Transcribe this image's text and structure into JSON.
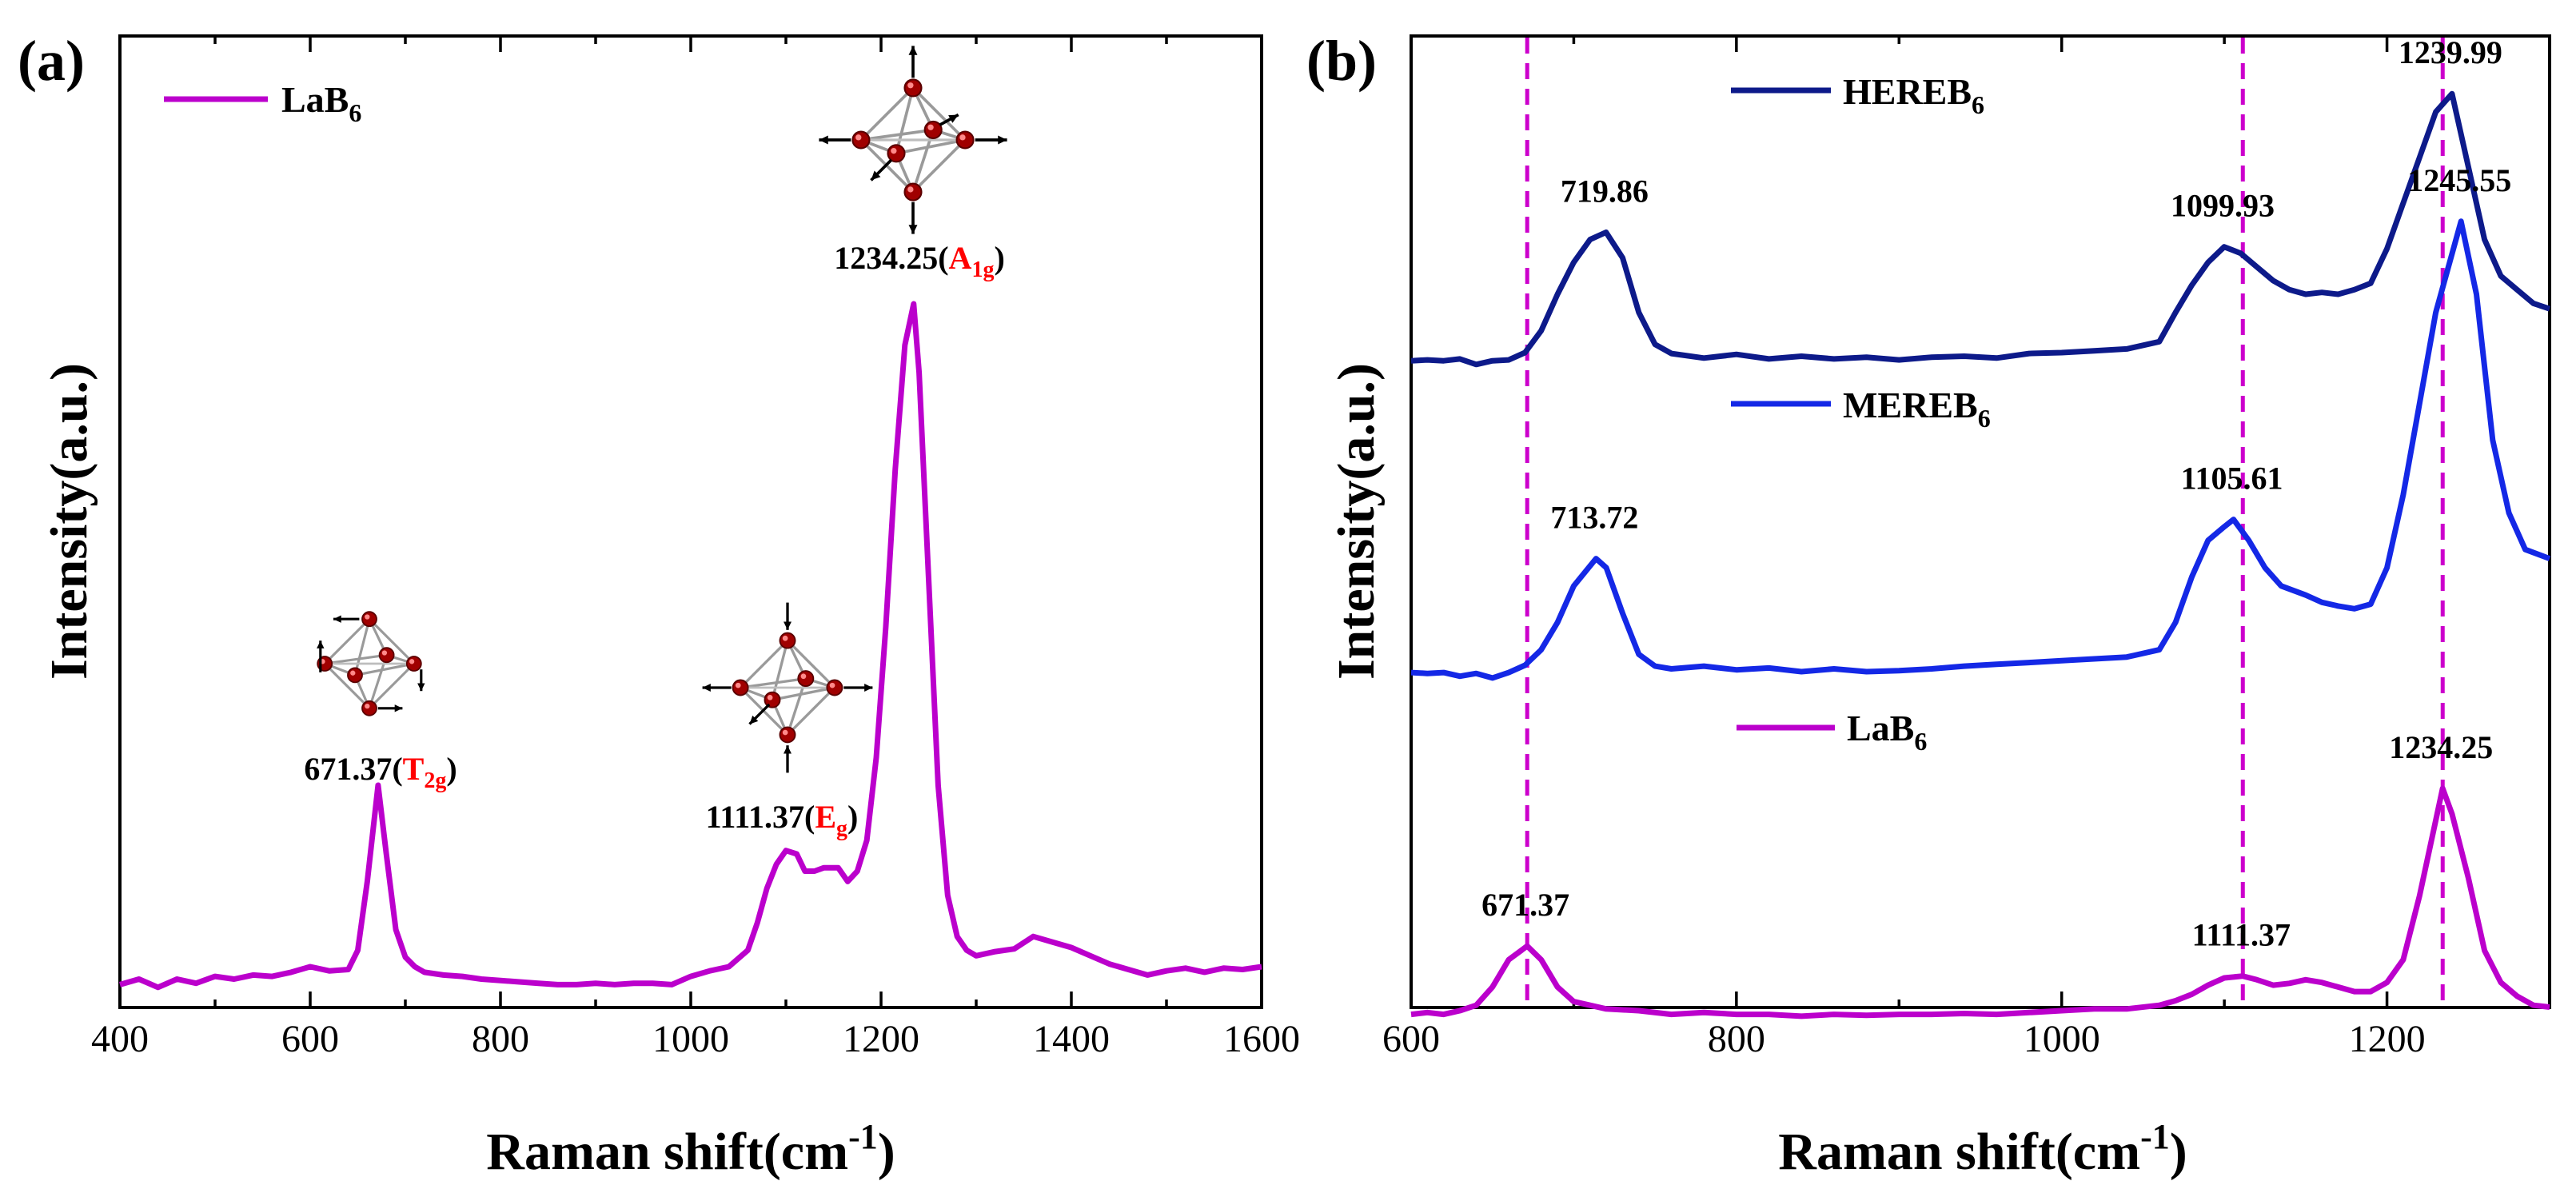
{
  "chart_data": [
    {
      "panel": "(a)",
      "type": "line",
      "xlabel": "Raman shift(cm-1)",
      "xlabel_main": "Raman shift(cm",
      "xlabel_sup": "-1",
      "xlabel_close": ")",
      "ylabel": "Intensity(a.u.)",
      "xlim": [
        400,
        1600
      ],
      "ylim": [
        0,
        1.0
      ],
      "xticks": [
        400,
        600,
        800,
        1000,
        1200,
        1400,
        1600
      ],
      "legend": {
        "main": "LaB",
        "sub": "6",
        "color": "#bb00cc",
        "position": "top-left"
      },
      "series": [
        {
          "name": "LaB6",
          "color": "#bb00cc",
          "x": [
            400,
            420,
            440,
            460,
            480,
            500,
            520,
            540,
            560,
            580,
            600,
            620,
            640,
            650,
            660,
            671.37,
            680,
            690,
            700,
            710,
            720,
            740,
            760,
            780,
            800,
            820,
            840,
            860,
            880,
            900,
            920,
            940,
            960,
            980,
            1000,
            1020,
            1040,
            1060,
            1070,
            1080,
            1090,
            1100,
            1111.37,
            1120,
            1130,
            1140,
            1155,
            1165,
            1175,
            1185,
            1195,
            1205,
            1215,
            1225,
            1234.25,
            1240,
            1250,
            1260,
            1270,
            1280,
            1290,
            1300,
            1320,
            1340,
            1360,
            1380,
            1400,
            1420,
            1440,
            1460,
            1480,
            1500,
            1520,
            1540,
            1560,
            1580,
            1600
          ],
          "y": [
            0.01,
            0.018,
            0.006,
            0.018,
            0.012,
            0.022,
            0.018,
            0.024,
            0.022,
            0.028,
            0.036,
            0.03,
            0.032,
            0.06,
            0.16,
            0.3,
            0.2,
            0.09,
            0.05,
            0.036,
            0.028,
            0.024,
            0.022,
            0.018,
            0.016,
            0.014,
            0.012,
            0.01,
            0.01,
            0.012,
            0.01,
            0.012,
            0.012,
            0.01,
            0.022,
            0.03,
            0.036,
            0.06,
            0.1,
            0.15,
            0.185,
            0.205,
            0.2,
            0.175,
            0.175,
            0.18,
            0.18,
            0.16,
            0.175,
            0.22,
            0.34,
            0.53,
            0.76,
            0.94,
            1.0,
            0.9,
            0.6,
            0.3,
            0.14,
            0.08,
            0.06,
            0.052,
            0.058,
            0.062,
            0.08,
            0.072,
            0.064,
            0.052,
            0.04,
            0.032,
            0.024,
            0.03,
            0.034,
            0.028,
            0.034,
            0.032,
            0.036
          ]
        }
      ],
      "annotations": [
        {
          "x": 671.37,
          "main": "671.37(",
          "mode": "T",
          "mode_sub": "2g",
          "close": ")"
        },
        {
          "x": 1111.37,
          "main": "1111.37(",
          "mode": "E",
          "mode_sub": "g",
          "close": ")"
        },
        {
          "x": 1234.25,
          "main": "1234.25(",
          "mode": "A",
          "mode_sub": "1g",
          "close": ")"
        }
      ]
    },
    {
      "panel": "(b)",
      "type": "line",
      "xlabel": "Raman shift(cm-1)",
      "xlabel_main": "Raman shift(cm",
      "xlabel_sup": "-1",
      "xlabel_close": ")",
      "ylabel": "Intensity(a.u.)",
      "xlim": [
        600,
        1300
      ],
      "ylim": [
        0,
        1.0
      ],
      "xticks": [
        600,
        800,
        1000,
        1200
      ],
      "reference_lines": [
        671.37,
        1111.37,
        1234.25
      ],
      "series": [
        {
          "name": "HEREB6",
          "legend_main": "HEREB",
          "legend_sub": "6",
          "color": "#0d1a8a",
          "x": [
            600,
            610,
            620,
            630,
            640,
            650,
            660,
            670,
            680,
            690,
            700,
            710,
            719.86,
            730,
            740,
            750,
            760,
            780,
            800,
            820,
            840,
            860,
            880,
            900,
            920,
            940,
            960,
            980,
            1000,
            1020,
            1040,
            1060,
            1070,
            1080,
            1090,
            1099.93,
            1110,
            1120,
            1130,
            1140,
            1150,
            1160,
            1170,
            1180,
            1190,
            1200,
            1210,
            1220,
            1230,
            1239.99,
            1250,
            1260,
            1270,
            1280,
            1290,
            1300
          ],
          "y": [
            0.727,
            0.728,
            0.727,
            0.729,
            0.723,
            0.727,
            0.728,
            0.736,
            0.76,
            0.8,
            0.835,
            0.86,
            0.868,
            0.84,
            0.78,
            0.745,
            0.735,
            0.73,
            0.734,
            0.729,
            0.732,
            0.729,
            0.731,
            0.728,
            0.731,
            0.732,
            0.73,
            0.735,
            0.736,
            0.738,
            0.74,
            0.748,
            0.78,
            0.81,
            0.835,
            0.852,
            0.845,
            0.83,
            0.815,
            0.805,
            0.8,
            0.802,
            0.8,
            0.805,
            0.812,
            0.85,
            0.9,
            0.95,
            1.0,
            1.02,
            0.94,
            0.86,
            0.82,
            0.805,
            0.79,
            0.784
          ]
        },
        {
          "name": "MEREB6",
          "legend_main": "MEREB",
          "legend_sub": "6",
          "color": "#1428e6",
          "x": [
            600,
            610,
            620,
            630,
            640,
            650,
            660,
            670,
            680,
            690,
            700,
            713.72,
            720,
            730,
            740,
            750,
            760,
            780,
            800,
            820,
            840,
            860,
            880,
            900,
            920,
            940,
            960,
            980,
            1000,
            1020,
            1040,
            1060,
            1070,
            1080,
            1090,
            1100,
            1105.61,
            1115,
            1125,
            1135,
            1150,
            1160,
            1170,
            1180,
            1190,
            1200,
            1210,
            1220,
            1230,
            1245.55,
            1255,
            1265,
            1275,
            1285,
            1300
          ],
          "y": [
            0.385,
            0.384,
            0.385,
            0.381,
            0.384,
            0.379,
            0.385,
            0.393,
            0.41,
            0.44,
            0.48,
            0.51,
            0.5,
            0.45,
            0.405,
            0.392,
            0.389,
            0.392,
            0.388,
            0.39,
            0.386,
            0.389,
            0.386,
            0.387,
            0.389,
            0.392,
            0.394,
            0.396,
            0.398,
            0.4,
            0.402,
            0.41,
            0.44,
            0.49,
            0.53,
            0.545,
            0.553,
            0.53,
            0.5,
            0.48,
            0.47,
            0.462,
            0.458,
            0.455,
            0.46,
            0.5,
            0.58,
            0.68,
            0.78,
            0.88,
            0.8,
            0.64,
            0.56,
            0.52,
            0.51
          ]
        },
        {
          "name": "LaB6",
          "legend_main": "LaB",
          "legend_sub": "6",
          "color": "#bb00cc",
          "x": [
            600,
            610,
            620,
            630,
            640,
            650,
            660,
            671.37,
            680,
            690,
            700,
            720,
            740,
            760,
            780,
            800,
            820,
            840,
            860,
            880,
            900,
            920,
            940,
            960,
            980,
            1000,
            1020,
            1040,
            1060,
            1070,
            1080,
            1090,
            1100,
            1111.37,
            1120,
            1130,
            1140,
            1150,
            1160,
            1170,
            1180,
            1190,
            1200,
            1210,
            1220,
            1234.25,
            1240,
            1250,
            1260,
            1270,
            1280,
            1290,
            1300
          ],
          "y": [
            0.01,
            0.012,
            0.01,
            0.014,
            0.02,
            0.04,
            0.07,
            0.085,
            0.07,
            0.04,
            0.024,
            0.016,
            0.014,
            0.01,
            0.012,
            0.01,
            0.01,
            0.008,
            0.01,
            0.009,
            0.01,
            0.01,
            0.011,
            0.01,
            0.012,
            0.014,
            0.016,
            0.016,
            0.02,
            0.025,
            0.032,
            0.042,
            0.05,
            0.052,
            0.048,
            0.042,
            0.044,
            0.048,
            0.045,
            0.04,
            0.035,
            0.035,
            0.045,
            0.07,
            0.14,
            0.258,
            0.23,
            0.16,
            0.08,
            0.045,
            0.03,
            0.02,
            0.018
          ]
        }
      ],
      "peak_labels": [
        {
          "series": "HEREB6",
          "x": 719.86,
          "text": "719.86"
        },
        {
          "series": "HEREB6",
          "x": 1099.93,
          "text": "1099.93"
        },
        {
          "series": "HEREB6",
          "x": 1239.99,
          "text": "1239.99"
        },
        {
          "series": "MEREB6",
          "x": 713.72,
          "text": "713.72"
        },
        {
          "series": "MEREB6",
          "x": 1105.61,
          "text": "1105.61"
        },
        {
          "series": "MEREB6",
          "x": 1245.55,
          "text": "1245.55"
        },
        {
          "series": "LaB6",
          "x": 671.37,
          "text": "671.37"
        },
        {
          "series": "LaB6",
          "x": 1111.37,
          "text": "1111.37"
        },
        {
          "series": "LaB6",
          "x": 1234.25,
          "text": "1234.25"
        }
      ]
    }
  ]
}
